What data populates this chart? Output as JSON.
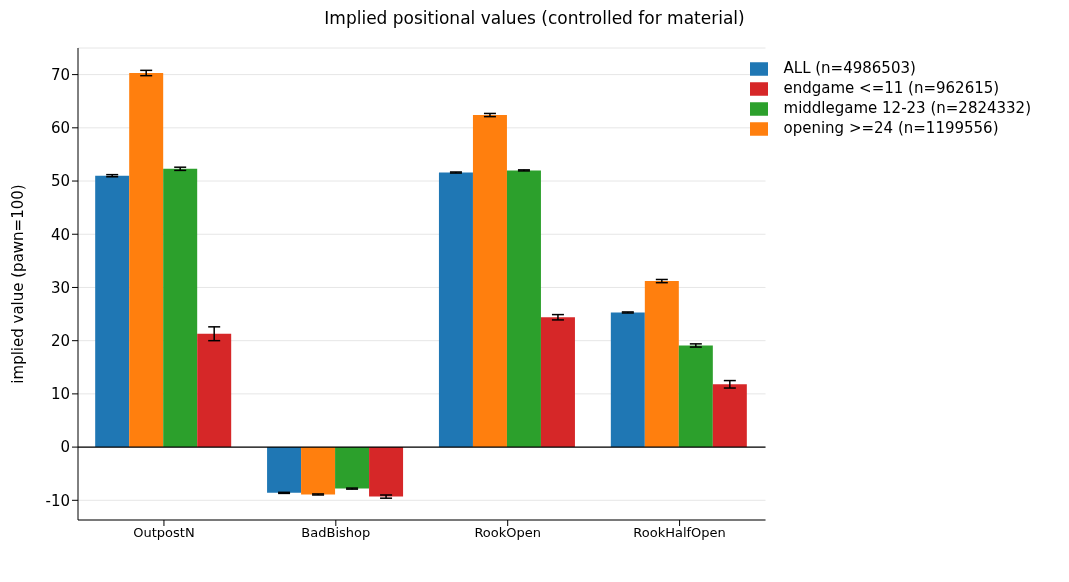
{
  "chart_data": {
    "type": "bar",
    "title": "Implied positional values (controlled for material)",
    "ylabel": "implied value (pawn=100)",
    "categories": [
      "OutpostN",
      "BadBishop",
      "RookOpen",
      "RookHalfOpen"
    ],
    "series": [
      {
        "name": "ALL (n=4986503)",
        "color": "#1f77b4",
        "values": [
          51.0,
          -8.6,
          51.6,
          25.3
        ],
        "errors": [
          0.2,
          0.1,
          0.1,
          0.1
        ]
      },
      {
        "name": "opening >=24 (n=1199556)",
        "color": "#ff7f0e",
        "values": [
          70.3,
          -8.9,
          62.4,
          31.2
        ],
        "errors": [
          0.5,
          0.1,
          0.3,
          0.3
        ]
      },
      {
        "name": "middlegame 12-23 (n=2824332)",
        "color": "#2ca02c",
        "values": [
          52.3,
          -7.8,
          52.0,
          19.1
        ],
        "errors": [
          0.3,
          0.1,
          0.1,
          0.3
        ]
      },
      {
        "name": "endgame <=11 (n=962615)",
        "color": "#d62728",
        "values": [
          21.3,
          -9.3,
          24.4,
          11.8
        ],
        "errors": [
          1.3,
          0.3,
          0.5,
          0.7
        ]
      }
    ],
    "ylim": [
      -13.7,
      75
    ],
    "yticks": [
      -10,
      0,
      10,
      20,
      30,
      40,
      50,
      60,
      70
    ],
    "grid": "y",
    "legend": "top right",
    "ref_lines": [
      {
        "axis": "y",
        "value": 0,
        "color": "#000000"
      }
    ]
  }
}
